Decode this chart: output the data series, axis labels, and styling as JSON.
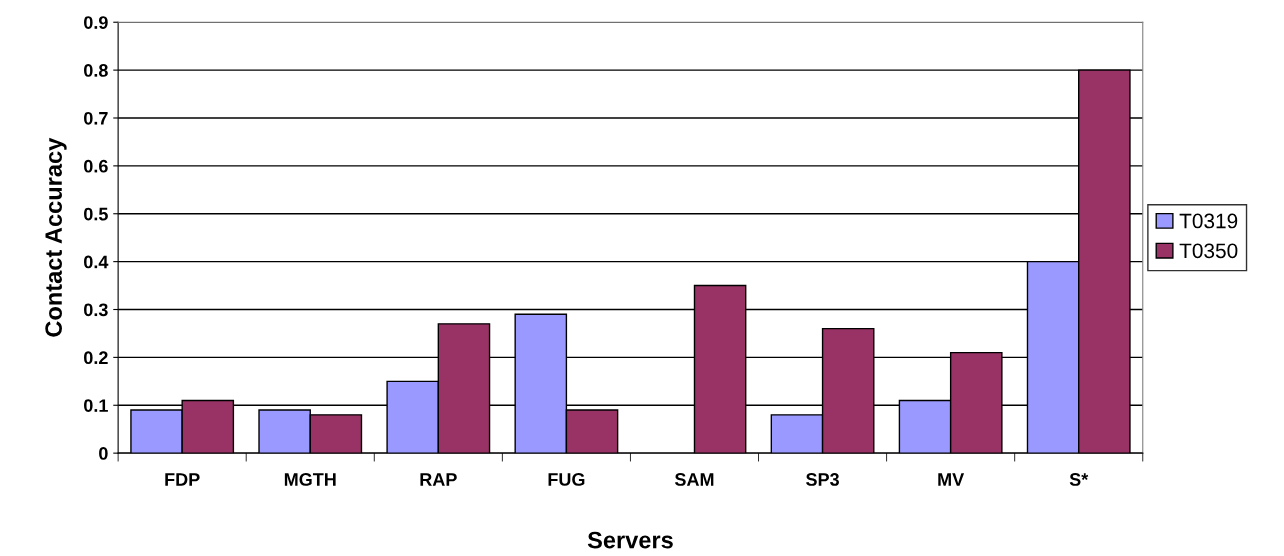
{
  "chart_data": {
    "type": "bar",
    "xlabel": "Servers",
    "ylabel": "Contact Accuracy",
    "categories": [
      "FDP",
      "MGTH",
      "RAP",
      "FUG",
      "SAM",
      "SP3",
      "MV",
      "S*"
    ],
    "series": [
      {
        "name": "T0319",
        "color": "#9999ff",
        "values": [
          0.09,
          0.09,
          0.15,
          0.29,
          null,
          0.08,
          0.11,
          0.4
        ]
      },
      {
        "name": "T0350",
        "color": "#993366",
        "values": [
          0.11,
          0.08,
          0.27,
          0.09,
          0.35,
          0.26,
          0.21,
          0.8
        ]
      }
    ],
    "ylim": [
      0,
      0.9
    ],
    "yticks": [
      0,
      0.1,
      0.2,
      0.3,
      0.4,
      0.5,
      0.6,
      0.7,
      0.8,
      0.9
    ],
    "grid": "y",
    "legend": "right"
  }
}
